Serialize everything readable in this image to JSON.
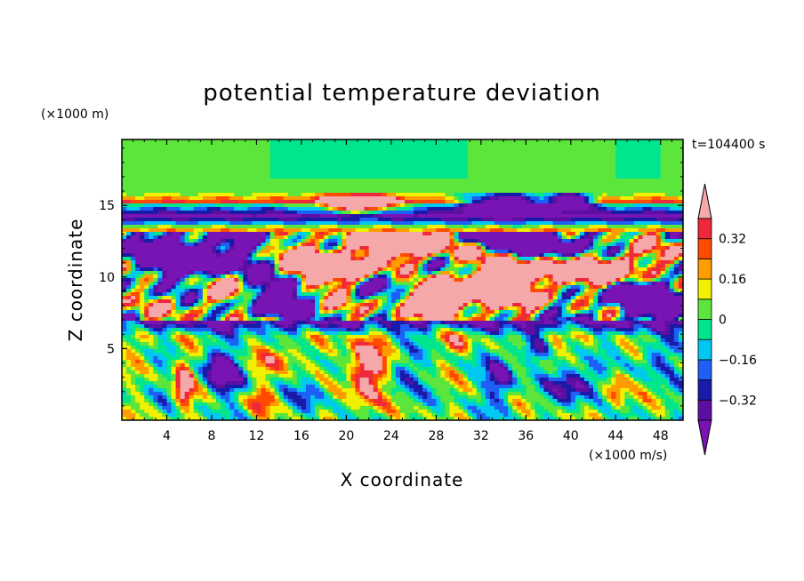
{
  "chart_data": {
    "type": "heatmap",
    "title": "potential temperature deviation",
    "xlabel": "X coordinate",
    "ylabel": "Z coordinate",
    "x_unit": "(×1000 m/s)",
    "y_unit": "(×1000 m)",
    "time_label": "t=104400 s",
    "xlim": [
      0,
      50
    ],
    "ylim": [
      0,
      19.6
    ],
    "x_ticks": [
      4,
      8,
      12,
      16,
      20,
      24,
      28,
      32,
      36,
      40,
      44,
      48
    ],
    "y_ticks": [
      5,
      10,
      15
    ],
    "grid": false,
    "colorbar": {
      "placement": "right",
      "tick_labels": [
        "0.32",
        "0.16",
        "0",
        "−0.16",
        "−0.32"
      ],
      "tick_values": [
        0.32,
        0.16,
        0,
        -0.16,
        -0.32
      ],
      "levels": [
        -0.4,
        -0.32,
        -0.24,
        -0.16,
        -0.08,
        0,
        0.08,
        0.16,
        0.24,
        0.32,
        0.4
      ],
      "colors": [
        "#5c0fa0",
        "#1a1aa8",
        "#1e5ff5",
        "#00c8f0",
        "#00e68c",
        "#5ce63c",
        "#f0f000",
        "#ff9c00",
        "#ff4a00",
        "#f0283c"
      ],
      "under_color": "#7814b4",
      "over_color": "#f4a8aa"
    }
  }
}
